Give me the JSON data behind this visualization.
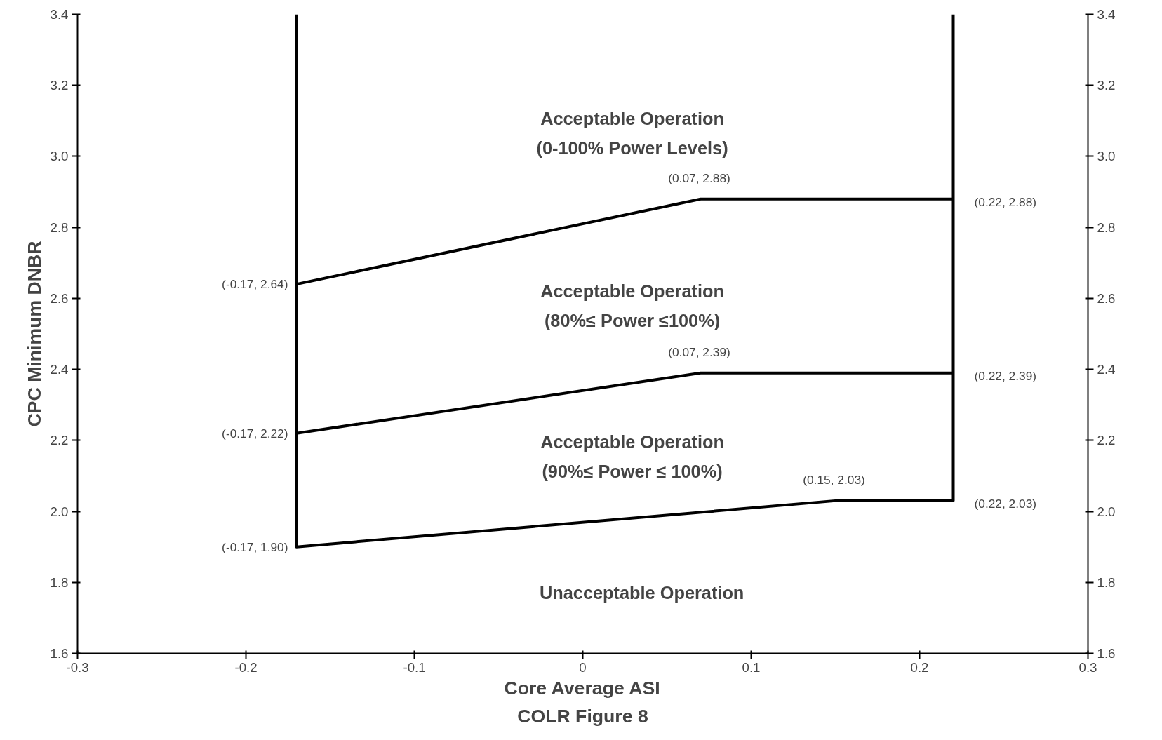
{
  "chart_data": {
    "type": "line",
    "title": "COLR Figure 8",
    "xlabel": "Core Average ASI",
    "ylabel": "CPC Minimum DNBR",
    "xlim": [
      -0.3,
      0.3
    ],
    "ylim": [
      1.6,
      3.4
    ],
    "y2lim": [
      1.6,
      3.4
    ],
    "xticks": [
      -0.3,
      -0.2,
      -0.1,
      {
        "value": 0,
        "label": "0"
      },
      0.1,
      0.2,
      0.3
    ],
    "yticks": [
      1.6,
      1.8,
      {
        "value": 2.0,
        "label": "2.0"
      },
      2.2,
      2.4,
      2.6,
      2.8,
      {
        "value": 3.0,
        "label": "3.0"
      },
      3.2,
      3.4
    ],
    "y2ticks": [
      1.6,
      1.8,
      {
        "value": 2.0,
        "label": "2.0"
      },
      2.2,
      2.4,
      2.6,
      2.8,
      {
        "value": 3.0,
        "label": "3.0"
      },
      3.2,
      3.4
    ],
    "grid": false,
    "marker": "none",
    "line_style": "solid",
    "series": [
      {
        "color": "#000000",
        "x": [
          -0.17,
          -0.17,
          0.15,
          0.22,
          0.22
        ],
        "values": [
          3.4,
          1.9,
          2.03,
          2.03,
          3.4
        ]
      },
      {
        "color": "#000000",
        "x": [
          -0.17,
          0.07,
          0.22
        ],
        "values": [
          2.64,
          2.88,
          2.88
        ]
      },
      {
        "color": "#000000",
        "x": [
          -0.17,
          0.07,
          0.22
        ],
        "values": [
          2.22,
          2.39,
          2.39
        ]
      }
    ],
    "annotations": [
      "Acceptable Operation\n(0-100% Power Levels)",
      "Acceptable Operation\n(80%≤ Power ≤100%)",
      "Acceptable Operation\n(90%≤ Power ≤ 100%)",
      "Unacceptable Operation",
      {
        "text": "(-0.17, 2.64)",
        "x": -0.17,
        "y": 2.64
      },
      {
        "text": "(-0.17, 2.22)",
        "x": -0.17,
        "y": 2.22
      },
      {
        "text": "(-0.17, 1.90)",
        "x": -0.17,
        "y": 1.9
      },
      {
        "text": "(0.07, 2.88)",
        "x": 0.07,
        "y": 2.88
      },
      {
        "text": "(0.07, 2.39)",
        "x": 0.07,
        "y": 2.39
      },
      {
        "text": "(0.15, 2.03)",
        "x": 0.15,
        "y": 2.03
      },
      {
        "text": "(0.22, 2.88)",
        "x": 0.22,
        "y": 2.88
      },
      {
        "text": "(0.22, 2.39)",
        "x": 0.22,
        "y": 2.39
      },
      {
        "text": "(0.22, 2.03)",
        "x": 0.22,
        "y": 2.03
      }
    ]
  }
}
